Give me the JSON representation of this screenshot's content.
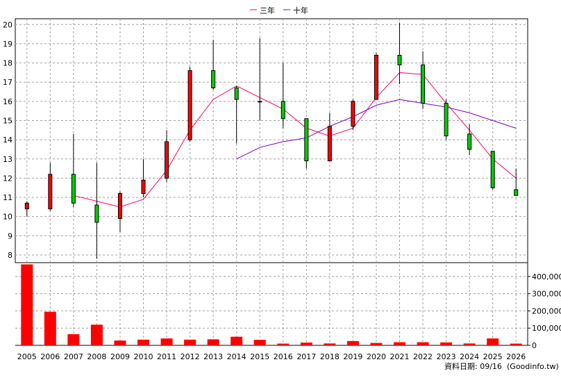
{
  "legend": {
    "ma3_label": "三年",
    "ma10_label": "十年"
  },
  "footer": {
    "date_label": "資料日期: 09/16",
    "source_label": "(Goodinfo.tw)"
  },
  "colors": {
    "up": "#ff0000",
    "down": "#00cc00",
    "ma3": "#ff0066",
    "ma10": "#7b00cc",
    "volume": "#ff0000",
    "grid": "#a0a0a0"
  },
  "chart_data": {
    "type": "candlestick",
    "x": [
      "2005",
      "2006",
      "2007",
      "2008",
      "2009",
      "2010",
      "2011",
      "2012",
      "2013",
      "2014",
      "2015",
      "2016",
      "2017",
      "2018",
      "2019",
      "2020",
      "2021",
      "2022",
      "2023",
      "2024",
      "2025",
      "2026"
    ],
    "price_axis": {
      "ticks": [
        8,
        9,
        10,
        11,
        12,
        13,
        14,
        15,
        16,
        17,
        18,
        19,
        20
      ],
      "ylim": [
        7.6,
        20.3
      ]
    },
    "volume_axis": {
      "ticks": [
        0,
        100000,
        200000,
        300000,
        400000
      ],
      "tick_labels": [
        "0",
        "100,000",
        "200,000",
        "300,000",
        "400,000"
      ],
      "ylim": [
        0,
        480000
      ]
    },
    "candles": [
      {
        "o": 10.4,
        "h": 10.8,
        "l": 10.0,
        "c": 10.7
      },
      {
        "o": 10.4,
        "h": 12.8,
        "l": 10.3,
        "c": 12.2
      },
      {
        "o": 12.2,
        "h": 14.3,
        "l": 10.5,
        "c": 10.7
      },
      {
        "o": 10.6,
        "h": 12.8,
        "l": 7.8,
        "c": 9.7
      },
      {
        "o": 9.9,
        "h": 11.3,
        "l": 9.2,
        "c": 11.2
      },
      {
        "o": 11.2,
        "h": 13.0,
        "l": 11.0,
        "c": 11.9
      },
      {
        "o": 12.0,
        "h": 14.5,
        "l": 11.8,
        "c": 13.9
      },
      {
        "o": 14.0,
        "h": 17.8,
        "l": 13.9,
        "c": 17.6
      },
      {
        "o": 17.6,
        "h": 19.2,
        "l": 16.6,
        "c": 16.7
      },
      {
        "o": 16.7,
        "h": 16.8,
        "l": 13.8,
        "c": 16.1
      },
      {
        "o": 16.0,
        "h": 19.3,
        "l": 15.0,
        "c": 16.0
      },
      {
        "o": 16.0,
        "h": 18.0,
        "l": 14.6,
        "c": 15.1
      },
      {
        "o": 15.1,
        "h": 15.1,
        "l": 12.5,
        "c": 12.9
      },
      {
        "o": 12.9,
        "h": 15.4,
        "l": 12.9,
        "c": 14.7
      },
      {
        "o": 14.7,
        "h": 16.1,
        "l": 14.5,
        "c": 16.0
      },
      {
        "o": 16.1,
        "h": 18.5,
        "l": 16.1,
        "c": 18.4
      },
      {
        "o": 18.4,
        "h": 20.1,
        "l": 16.9,
        "c": 17.9
      },
      {
        "o": 17.9,
        "h": 18.6,
        "l": 15.6,
        "c": 15.9
      },
      {
        "o": 15.9,
        "h": 16.1,
        "l": 14.0,
        "c": 14.2
      },
      {
        "o": 14.3,
        "h": 14.8,
        "l": 13.2,
        "c": 13.5
      },
      {
        "o": 13.4,
        "h": 13.4,
        "l": 11.4,
        "c": 11.5
      },
      {
        "o": 11.4,
        "h": 12.5,
        "l": 11.1,
        "c": 11.1
      }
    ],
    "series": [
      {
        "name": "三年",
        "values": [
          null,
          null,
          11.1,
          10.8,
          10.5,
          10.9,
          12.4,
          14.5,
          16.1,
          16.8,
          16.2,
          15.6,
          14.6,
          14.2,
          14.6,
          16.2,
          17.5,
          17.4,
          15.9,
          14.5,
          13.0,
          12.0
        ]
      },
      {
        "name": "十年",
        "values": [
          null,
          null,
          null,
          null,
          null,
          null,
          null,
          null,
          null,
          13.0,
          13.6,
          13.9,
          14.1,
          14.7,
          15.2,
          15.8,
          16.1,
          15.9,
          15.7,
          15.4,
          15.0,
          14.6
        ]
      }
    ],
    "volume": [
      470000,
      195000,
      65000,
      120000,
      28000,
      33000,
      40000,
      33000,
      35000,
      50000,
      32000,
      10000,
      16000,
      11000,
      25000,
      14000,
      18000,
      18000,
      17000,
      11000,
      40000,
      10000
    ]
  }
}
